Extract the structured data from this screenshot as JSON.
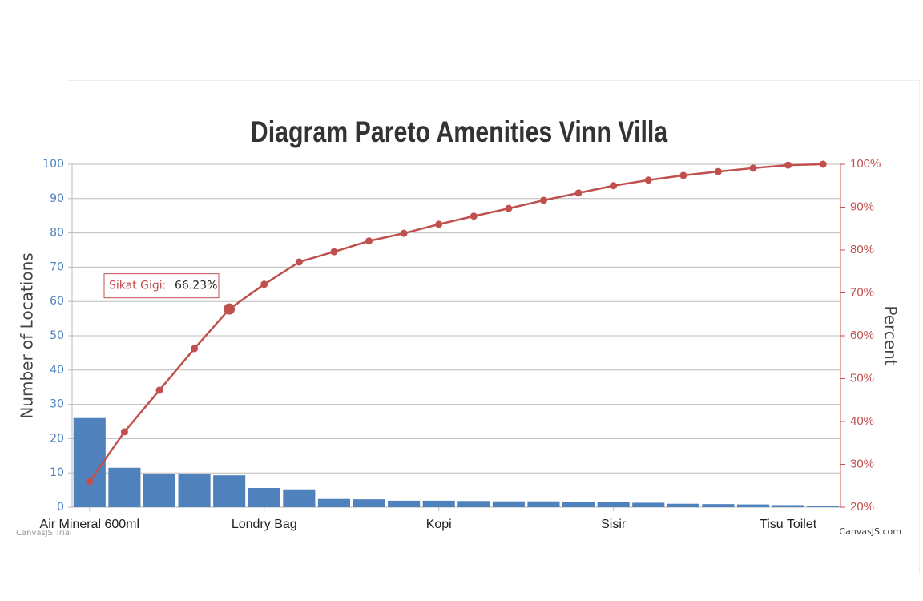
{
  "chart_data": {
    "type": "pareto",
    "title": "Diagram Pareto Amenities Vinn Villa",
    "y_label": "Number of Locations",
    "y2_label": "Percent",
    "categories": [
      "Air Mineral 600ml",
      null,
      null,
      null,
      null,
      "Londry Bag",
      null,
      null,
      null,
      null,
      "Kopi",
      null,
      null,
      null,
      null,
      "Sisir",
      null,
      null,
      null,
      null,
      "Tisu Toilet",
      null
    ],
    "series": [
      {
        "type": "bar",
        "color": "#4f81bc",
        "values": [
          26,
          11.5,
          9.8,
          9.6,
          9.3,
          5.6,
          5.2,
          2.4,
          2.3,
          1.9,
          1.9,
          1.8,
          1.7,
          1.7,
          1.6,
          1.5,
          1.3,
          1.0,
          0.9,
          0.8,
          0.6,
          0.3
        ]
      },
      {
        "type": "line",
        "axis": "y2",
        "color": "#c0504e",
        "values": [
          26,
          37.6,
          47.3,
          57.0,
          66.23,
          72.0,
          77.2,
          79.6,
          82.1,
          83.9,
          86.0,
          87.9,
          89.7,
          91.6,
          93.3,
          95.0,
          96.3,
          97.4,
          98.3,
          99.1,
          99.8,
          100
        ]
      }
    ],
    "ylim": [
      0,
      100
    ],
    "yticks": [
      0,
      10,
      20,
      30,
      40,
      50,
      60,
      70,
      80,
      90,
      100
    ],
    "y2lim": [
      20,
      100
    ],
    "y2ticks": [
      {
        "value": 20,
        "label": "20%"
      },
      {
        "value": 30,
        "label": "30%"
      },
      {
        "value": 40,
        "label": "40%"
      },
      {
        "value": 50,
        "label": "50%"
      },
      {
        "value": 60,
        "label": "60%"
      },
      {
        "value": 70,
        "label": "70%"
      },
      {
        "value": 80,
        "label": "80%"
      },
      {
        "value": 90,
        "label": "90%"
      },
      {
        "value": 100,
        "label": "100%"
      }
    ],
    "grid": true,
    "tooltip": {
      "label": "Sikat Gigi:",
      "value": 66.23,
      "value_label": "66.23%"
    },
    "credits": [
      "CanvasJS Trial",
      "CanvasJS.com"
    ]
  }
}
